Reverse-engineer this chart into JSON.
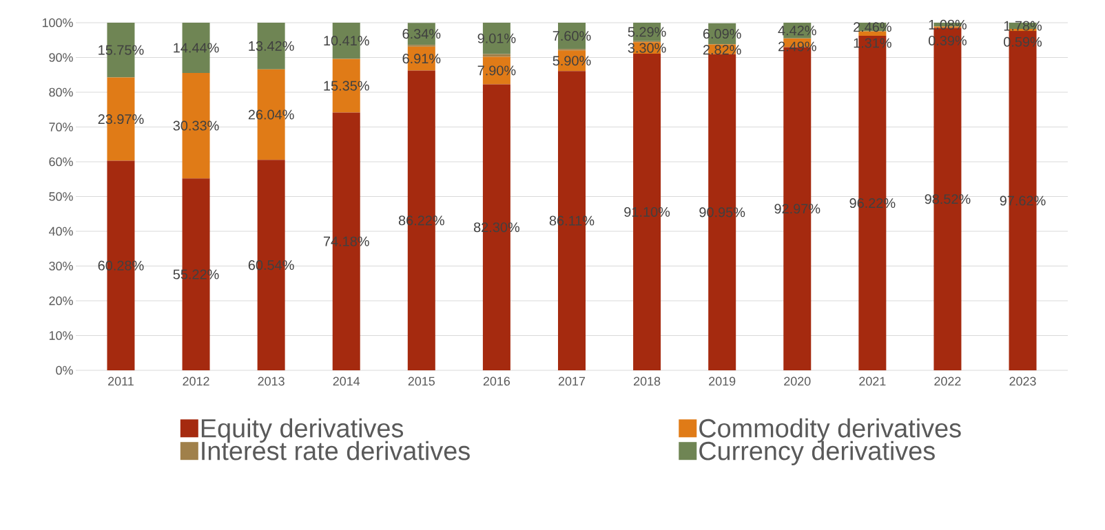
{
  "chart_data": {
    "type": "bar",
    "stacked": true,
    "categories": [
      "2011",
      "2012",
      "2013",
      "2014",
      "2015",
      "2016",
      "2017",
      "2018",
      "2019",
      "2020",
      "2021",
      "2022",
      "2023"
    ],
    "ylim": [
      0,
      100
    ],
    "yticks": [
      {
        "value": 0,
        "label": "0%"
      },
      {
        "value": 10,
        "label": "10%"
      },
      {
        "value": 20,
        "label": "20%"
      },
      {
        "value": 30,
        "label": "30%"
      },
      {
        "value": 40,
        "label": "40%"
      },
      {
        "value": 50,
        "label": "50%"
      },
      {
        "value": 60,
        "label": "60%"
      },
      {
        "value": 70,
        "label": "70%"
      },
      {
        "value": 80,
        "label": "80%"
      },
      {
        "value": 90,
        "label": "90%"
      },
      {
        "value": 100,
        "label": "100%"
      }
    ],
    "grid": "y",
    "legend": "bottom",
    "series": [
      {
        "name": "Equity derivatives",
        "color": "#a52a0f",
        "values": [
          60.28,
          55.22,
          60.54,
          74.18,
          86.22,
          82.3,
          86.11,
          91.1,
          90.95,
          92.97,
          96.22,
          98.52,
          97.62
        ],
        "value_labels": [
          "60.28%",
          "55.22%",
          "60.54%",
          "74.18%",
          "86.22%",
          "82.30%",
          "86.11%",
          "91.10%",
          "90.95%",
          "92.97%",
          "96.22%",
          "98.52%",
          "97.62%"
        ]
      },
      {
        "name": "Commodity derivatives",
        "color": "#e07b17",
        "values": [
          23.97,
          30.33,
          26.04,
          15.35,
          6.91,
          7.9,
          5.9,
          3.3,
          2.82,
          2.49,
          1.31,
          0.39,
          0.59
        ],
        "value_labels": [
          "23.97%",
          "30.33%",
          "26.04%",
          "15.35%",
          "6.91%",
          "7.90%",
          "5.90%",
          "3.30%",
          "2.82%",
          "2.49%",
          "1.31%",
          "0.39%",
          "0.59%"
        ]
      },
      {
        "name": "Interest rate derivatives",
        "color": "#a0804a",
        "values": [
          0,
          0,
          0,
          0.1,
          0.5,
          0.8,
          0.4,
          0.3,
          null,
          0.1,
          0,
          0,
          0
        ],
        "value_labels": [
          null,
          null,
          null,
          null,
          null,
          null,
          null,
          null,
          null,
          null,
          null,
          null,
          null
        ]
      },
      {
        "name": "Currency derivatives",
        "color": "#6f8554",
        "values": [
          15.75,
          14.44,
          13.42,
          10.41,
          6.34,
          9.01,
          7.6,
          5.29,
          6.09,
          4.42,
          2.46,
          1.08,
          1.78
        ],
        "value_labels": [
          "15.75%",
          "14.44%",
          "13.42%",
          "10.41%",
          "6.34%",
          "9.01%",
          "7.60%",
          "5.29%",
          "6.09%",
          "4.42%",
          "2.46%",
          "1.08%",
          "1.78%"
        ]
      }
    ]
  }
}
